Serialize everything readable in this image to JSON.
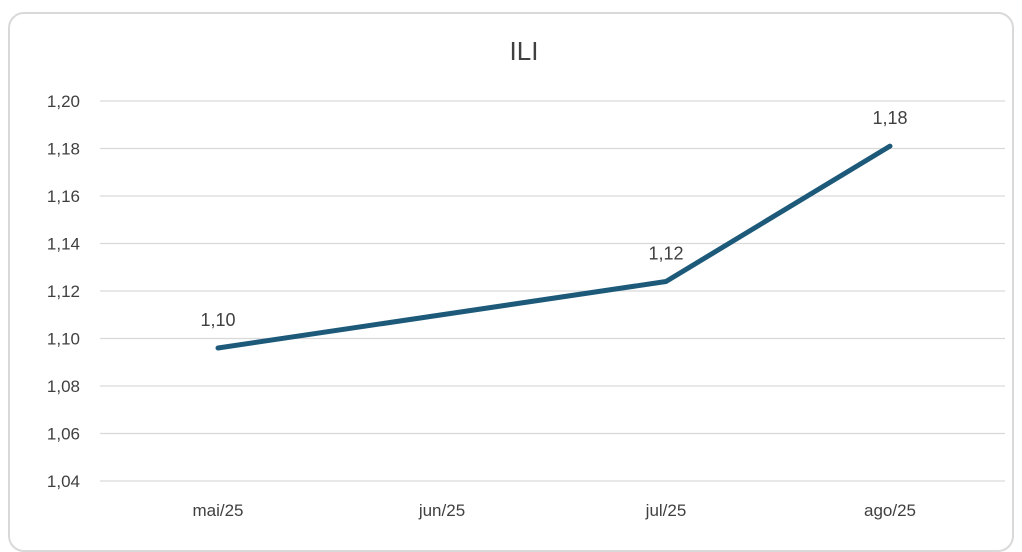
{
  "chart_data": {
    "type": "line",
    "title": "ILI",
    "categories": [
      "mai/25",
      "jun/25",
      "jul/25",
      "ago/25"
    ],
    "series": [
      {
        "values": [
          1.096,
          1.11,
          1.124,
          1.181
        ],
        "color": "#1d5a7a"
      }
    ],
    "data_labels": [
      "1,10",
      null,
      "1,12",
      "1,18"
    ],
    "y_ticks": [
      "1,04",
      "1,06",
      "1,08",
      "1,10",
      "1,12",
      "1,14",
      "1,16",
      "1,18",
      "1,20"
    ],
    "ylim": [
      1.04,
      1.2
    ],
    "grid": true,
    "legend": false
  }
}
